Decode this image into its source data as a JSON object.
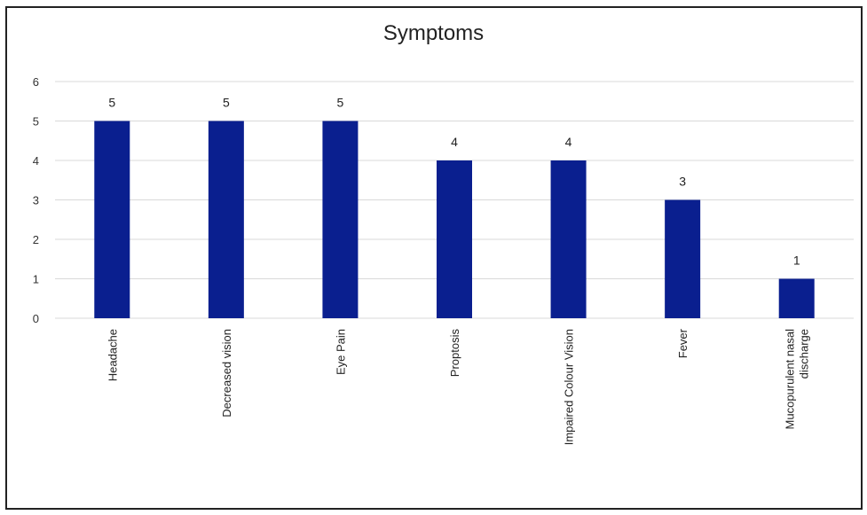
{
  "chart_data": {
    "type": "bar",
    "title": "Symptoms",
    "categories": [
      [
        "Headache"
      ],
      [
        "Decreased vision"
      ],
      [
        "Eye Pain"
      ],
      [
        "Proptosis"
      ],
      [
        "Impaired Colour Vision"
      ],
      [
        "Fever"
      ],
      [
        "Mucopurulent nasal",
        "discharge"
      ]
    ],
    "values": [
      5,
      5,
      5,
      4,
      4,
      3,
      1
    ],
    "ylim": [
      0,
      6
    ],
    "yticks": [
      0,
      1,
      2,
      3,
      4,
      5,
      6
    ],
    "xlabel": "",
    "ylabel": "",
    "grid": true,
    "data_labels": true,
    "bar_color": "#0a1f8f",
    "grid_color": "#d9d9d9"
  }
}
